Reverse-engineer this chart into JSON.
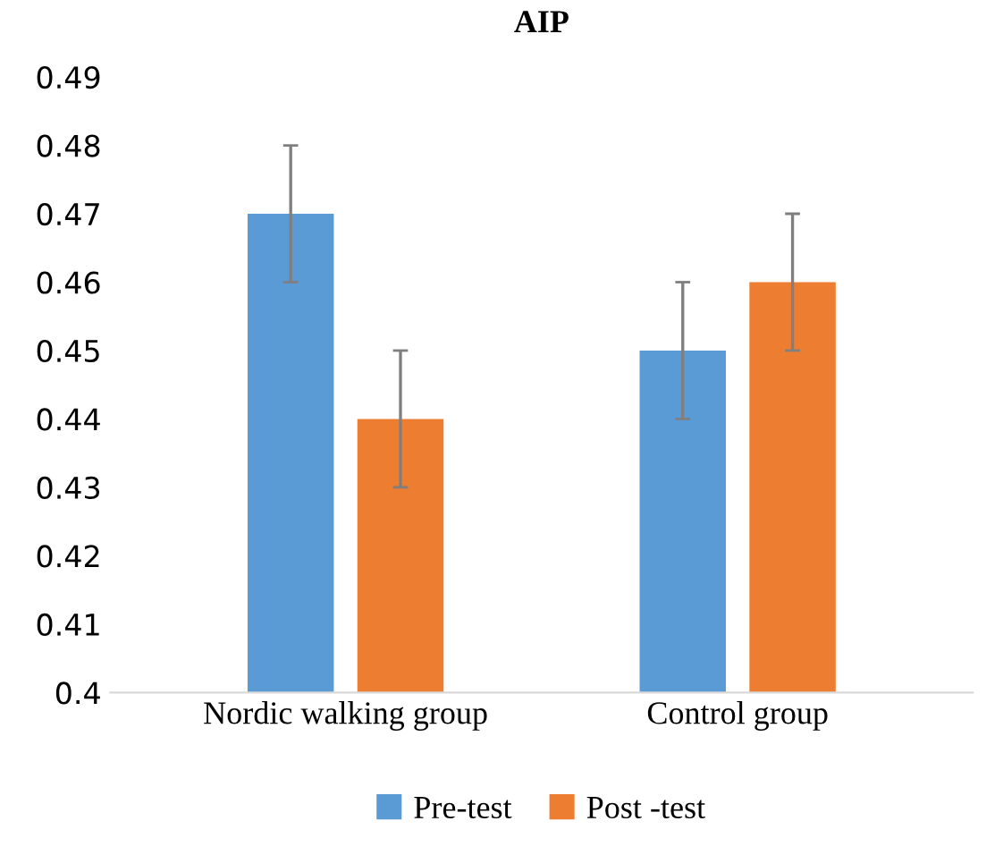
{
  "chart_data": {
    "type": "bar",
    "title": "AIP",
    "categories": [
      "Nordic walking group",
      "Control group"
    ],
    "series": [
      {
        "name": "Pre-test",
        "color": "#5b9bd5",
        "values": [
          0.47,
          0.45
        ],
        "errors": [
          0.01,
          0.01
        ]
      },
      {
        "name": "Post -test",
        "color": "#ed7d31",
        "values": [
          0.44,
          0.46
        ],
        "errors": [
          0.01,
          0.01
        ]
      }
    ],
    "ylim": [
      0.4,
      0.49
    ],
    "yticks": [
      0.4,
      0.41,
      0.42,
      0.43,
      0.44,
      0.45,
      0.46,
      0.47,
      0.48,
      0.49
    ],
    "grid": false,
    "legend": "bottom"
  }
}
